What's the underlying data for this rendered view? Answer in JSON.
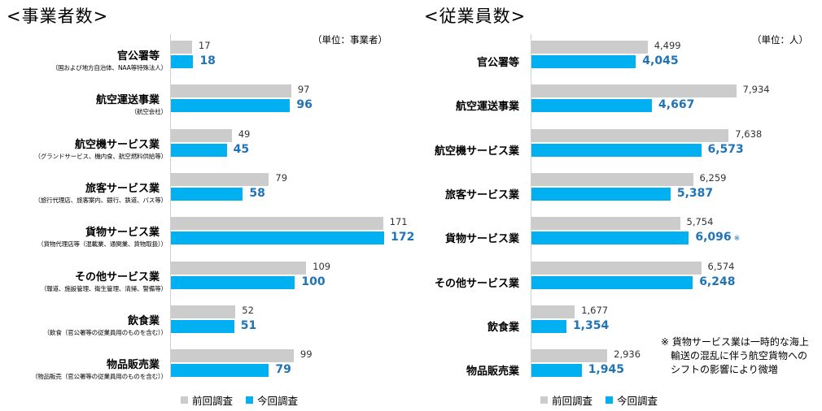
{
  "colors": {
    "prev": "#cccccc",
    "curr": "#00b0f0",
    "curr_label": "#1f73b7"
  },
  "legend": {
    "prev": "前回調査",
    "curr": "今回調査"
  },
  "chart_data": [
    {
      "type": "bar",
      "title": "<事業者数>",
      "unit": "（単位：事業者）",
      "categories": [
        "官公署等",
        "航空運送事業",
        "航空機サービス業",
        "旅客サービス業",
        "貨物サービス業",
        "その他サービス業",
        "飲食業",
        "物品販売業"
      ],
      "subcategories": [
        "（国および地方自治体、NAA等特殊法人）",
        "（航空会社）",
        "（グランドサービス、機内食、航空燃料供給等）",
        "（旅行代理店、旅客案内、銀行、鉄道、バス等）",
        "（貨物代理店等（混載業、通関業、貨物取扱））",
        "（報道、施設管理、衛生管理、清掃、警備等）",
        "（飲食（官公署等の従業員用のものを含む））",
        "（物品販売（官公署等の従業員用のものを含む））"
      ],
      "series": [
        {
          "name": "前回調査",
          "values": [
            17,
            97,
            49,
            79,
            171,
            109,
            52,
            99
          ],
          "labels": [
            "17",
            "97",
            "49",
            "79",
            "171",
            "109",
            "52",
            "99"
          ]
        },
        {
          "name": "今回調査",
          "values": [
            18,
            96,
            45,
            58,
            172,
            100,
            51,
            79
          ],
          "labels": [
            "18",
            "96",
            "45",
            "58",
            "172",
            "100",
            "51",
            "79"
          ]
        }
      ],
      "xlim": [
        0,
        185
      ]
    },
    {
      "type": "bar",
      "title": "<従業員数>",
      "unit": "（単位：人）",
      "categories": [
        "官公署等",
        "航空運送事業",
        "航空機サービス業",
        "旅客サービス業",
        "貨物サービス業",
        "その他サービス業",
        "飲食業",
        "物品販売業"
      ],
      "series": [
        {
          "name": "前回調査",
          "values": [
            4499,
            7934,
            7638,
            6259,
            5754,
            6574,
            1677,
            2936
          ],
          "labels": [
            "4,499",
            "7,934",
            "7,638",
            "6,259",
            "5,754",
            "6,574",
            "1,677",
            "2,936"
          ]
        },
        {
          "name": "今回調査",
          "values": [
            4045,
            4667,
            6573,
            5387,
            6096,
            6248,
            1354,
            1945
          ],
          "labels": [
            "4,045",
            "4,667",
            "6,573",
            "5,387",
            "6,096",
            "6,248",
            "1,354",
            "1,945"
          ]
        }
      ],
      "marks": {
        "4": "※"
      },
      "xlim": [
        0,
        8890
      ]
    }
  ],
  "note": {
    "line1": "※ 貨物サービス業は一時的な海上",
    "line2": "輸送の混乱に伴う航空貨物への",
    "line3": "シフトの影響により微増"
  }
}
